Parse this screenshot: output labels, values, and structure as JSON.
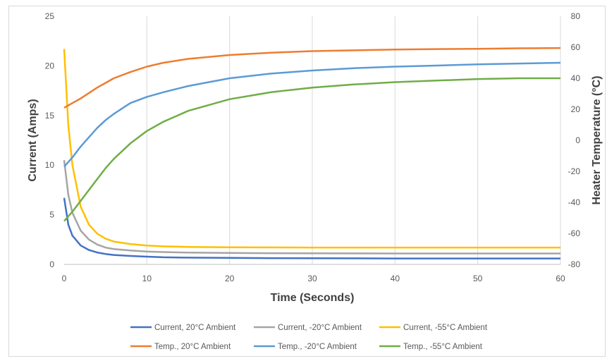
{
  "chart_data": {
    "type": "line",
    "title": "",
    "xlabel": "Time (Seconds)",
    "ylabel_left": "Current  (Amps)",
    "ylabel_right": "Heater Temperature (°C)",
    "xlim": [
      0,
      60
    ],
    "ylim_left": [
      0,
      25
    ],
    "ylim_right": [
      -80,
      80
    ],
    "x_ticks": [
      "0",
      "10",
      "20",
      "30",
      "40",
      "50",
      "60"
    ],
    "y_left_ticks": [
      "0",
      "5",
      "10",
      "15",
      "20",
      "25"
    ],
    "y_right_ticks": [
      "-80",
      "-60",
      "-40",
      "-20",
      "0",
      "20",
      "40",
      "60",
      "80"
    ],
    "grid": "vertical",
    "legend_position": "bottom",
    "x": [
      0,
      0.5,
      1,
      2,
      3,
      4,
      5,
      6,
      8,
      10,
      12,
      15,
      20,
      25,
      30,
      35,
      40,
      45,
      50,
      55,
      60
    ],
    "series": [
      {
        "name": "Current, 20°C Ambient",
        "axis": "left",
        "color": "#4472c4",
        "values": [
          6.7,
          4.0,
          2.9,
          1.9,
          1.45,
          1.2,
          1.05,
          0.95,
          0.85,
          0.78,
          0.72,
          0.68,
          0.65,
          0.63,
          0.62,
          0.61,
          0.6,
          0.6,
          0.6,
          0.6,
          0.6
        ]
      },
      {
        "name": "Current, -20°C Ambient",
        "axis": "left",
        "color": "#a5a5a5",
        "values": [
          10.5,
          7.0,
          5.2,
          3.4,
          2.5,
          2.0,
          1.7,
          1.55,
          1.4,
          1.3,
          1.24,
          1.19,
          1.15,
          1.13,
          1.12,
          1.11,
          1.1,
          1.1,
          1.1,
          1.1,
          1.1
        ]
      },
      {
        "name": "Current, -55°C Ambient",
        "axis": "left",
        "color": "#ffc000",
        "values": [
          21.7,
          14.0,
          10.0,
          5.8,
          4.0,
          3.1,
          2.6,
          2.3,
          2.05,
          1.9,
          1.82,
          1.76,
          1.72,
          1.71,
          1.7,
          1.7,
          1.7,
          1.7,
          1.7,
          1.7,
          1.7
        ]
      },
      {
        "name": "Temp., 20°C Ambient",
        "axis": "right",
        "color": "#ed7d31",
        "values": [
          21,
          22.5,
          24,
          27,
          30.5,
          34,
          37,
          40,
          44,
          47.5,
          50,
          52.5,
          55,
          56.5,
          57.5,
          58,
          58.5,
          58.8,
          59,
          59.3,
          59.5
        ]
      },
      {
        "name": "Temp., -20°C Ambient",
        "axis": "right",
        "color": "#5b9bd5",
        "values": [
          -17,
          -14,
          -11,
          -4,
          2,
          8,
          13,
          17,
          24,
          28,
          31,
          35,
          40,
          43,
          45,
          46.5,
          47.5,
          48.2,
          49,
          49.5,
          50
        ]
      },
      {
        "name": "Temp., -55°C Ambient",
        "axis": "right",
        "color": "#70ad47",
        "values": [
          -52,
          -49,
          -46,
          -39,
          -32,
          -25,
          -18,
          -12,
          -2,
          6,
          12,
          19,
          26.5,
          31,
          34,
          36,
          37.5,
          38.5,
          39.5,
          40,
          40
        ]
      }
    ]
  }
}
